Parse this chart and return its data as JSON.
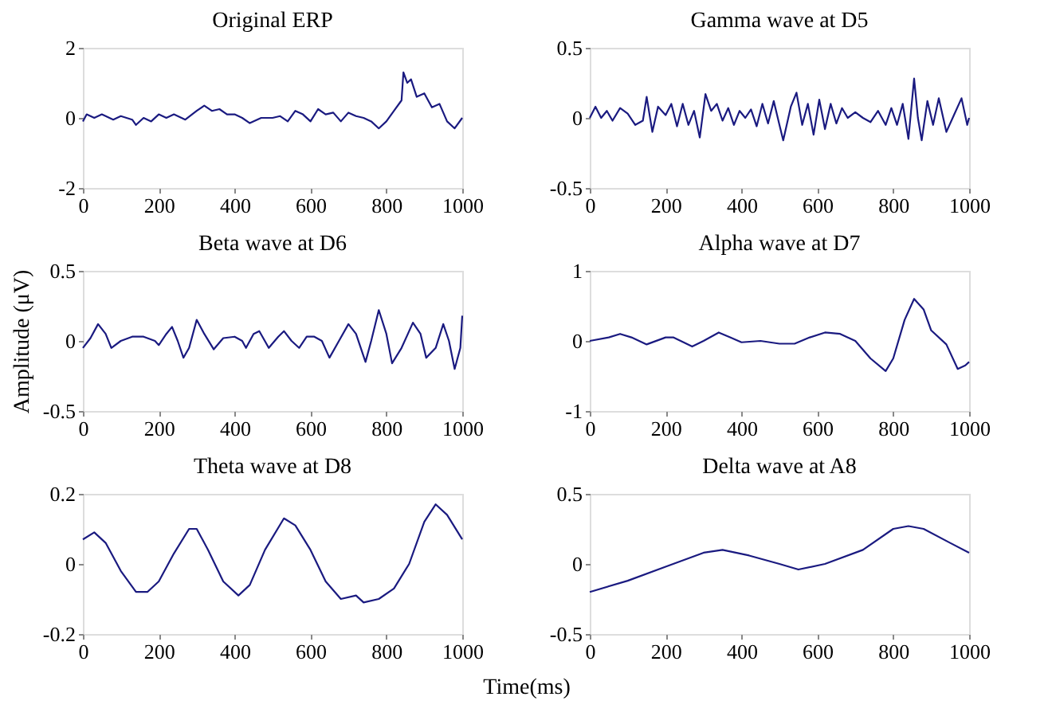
{
  "chart_data": [
    {
      "type": "line",
      "title": "Original ERP",
      "xlim": [
        0,
        1000
      ],
      "xticks": [
        0,
        200,
        400,
        600,
        800,
        1000
      ],
      "ylim": [
        -2,
        2
      ],
      "yticks": [
        -2,
        0,
        2
      ],
      "grid": false,
      "legend": false,
      "x": [
        0,
        10,
        30,
        50,
        80,
        100,
        130,
        140,
        160,
        180,
        200,
        220,
        240,
        270,
        300,
        320,
        340,
        360,
        380,
        400,
        420,
        440,
        470,
        500,
        520,
        540,
        560,
        580,
        600,
        620,
        640,
        660,
        680,
        700,
        720,
        740,
        760,
        780,
        800,
        820,
        840,
        845,
        855,
        865,
        880,
        900,
        920,
        940,
        960,
        980,
        1000
      ],
      "series": [
        {
          "color": "#1a1a80",
          "values": [
            -0.1,
            0.1,
            0.0,
            0.1,
            -0.05,
            0.05,
            -0.05,
            -0.2,
            0.0,
            -0.1,
            0.1,
            0.0,
            0.1,
            -0.05,
            0.2,
            0.35,
            0.2,
            0.25,
            0.1,
            0.1,
            0.0,
            -0.15,
            0.0,
            0.0,
            0.05,
            -0.1,
            0.2,
            0.1,
            -0.1,
            0.25,
            0.1,
            0.15,
            -0.1,
            0.15,
            0.05,
            0.0,
            -0.1,
            -0.3,
            -0.1,
            0.2,
            0.5,
            1.3,
            1.0,
            1.1,
            0.6,
            0.7,
            0.3,
            0.4,
            -0.1,
            -0.3,
            0.0
          ]
        }
      ]
    },
    {
      "type": "line",
      "title": "Gamma wave at D5",
      "xlim": [
        0,
        1000
      ],
      "xticks": [
        0,
        200,
        400,
        600,
        800,
        1000
      ],
      "ylim": [
        -0.5,
        0.5
      ],
      "yticks": [
        -0.5,
        0,
        0.5
      ],
      "grid": false,
      "legend": false,
      "x": [
        0,
        15,
        30,
        45,
        60,
        80,
        100,
        120,
        140,
        150,
        165,
        180,
        200,
        215,
        230,
        245,
        260,
        275,
        290,
        305,
        320,
        335,
        350,
        365,
        380,
        395,
        410,
        425,
        440,
        455,
        470,
        485,
        500,
        510,
        530,
        545,
        560,
        575,
        590,
        605,
        620,
        635,
        650,
        665,
        680,
        700,
        720,
        740,
        760,
        780,
        795,
        810,
        825,
        840,
        855,
        865,
        875,
        890,
        905,
        920,
        940,
        960,
        980,
        995,
        1000
      ],
      "series": [
        {
          "color": "#1a1a80",
          "values": [
            0.0,
            0.08,
            0.0,
            0.05,
            -0.02,
            0.07,
            0.03,
            -0.05,
            -0.02,
            0.15,
            -0.1,
            0.08,
            0.02,
            0.1,
            -0.06,
            0.1,
            -0.05,
            0.05,
            -0.14,
            0.17,
            0.05,
            0.1,
            -0.02,
            0.07,
            -0.05,
            0.05,
            0.0,
            0.06,
            -0.06,
            0.1,
            -0.04,
            0.12,
            -0.05,
            -0.16,
            0.08,
            0.18,
            -0.05,
            0.1,
            -0.12,
            0.13,
            -0.08,
            0.1,
            -0.04,
            0.07,
            0.0,
            0.04,
            0.0,
            -0.03,
            0.05,
            -0.05,
            0.07,
            -0.05,
            0.1,
            -0.15,
            0.28,
            0.0,
            -0.16,
            0.12,
            -0.05,
            0.14,
            -0.1,
            0.02,
            0.14,
            -0.05,
            0.0
          ]
        }
      ]
    },
    {
      "type": "line",
      "title": "Beta wave at D6",
      "ylabel": "Amplitude (μV)",
      "xlim": [
        0,
        1000
      ],
      "xticks": [
        0,
        200,
        400,
        600,
        800,
        1000
      ],
      "ylim": [
        -0.5,
        0.5
      ],
      "yticks": [
        -0.5,
        0,
        0.5
      ],
      "grid": false,
      "legend": false,
      "x": [
        0,
        20,
        40,
        60,
        75,
        100,
        130,
        160,
        190,
        200,
        220,
        235,
        250,
        265,
        280,
        300,
        320,
        345,
        370,
        400,
        420,
        430,
        450,
        465,
        490,
        515,
        530,
        550,
        570,
        590,
        610,
        630,
        650,
        675,
        700,
        720,
        745,
        760,
        780,
        800,
        815,
        840,
        870,
        890,
        905,
        930,
        950,
        965,
        980,
        995,
        1000
      ],
      "series": [
        {
          "color": "#1a1a80",
          "values": [
            -0.05,
            0.02,
            0.12,
            0.05,
            -0.05,
            0.0,
            0.03,
            0.03,
            0.0,
            -0.03,
            0.05,
            0.1,
            0.0,
            -0.12,
            -0.05,
            0.15,
            0.05,
            -0.06,
            0.02,
            0.03,
            0.0,
            -0.05,
            0.05,
            0.07,
            -0.05,
            0.03,
            0.07,
            0.0,
            -0.05,
            0.03,
            0.03,
            0.0,
            -0.12,
            0.0,
            0.12,
            0.05,
            -0.15,
            0.0,
            0.22,
            0.05,
            -0.16,
            -0.05,
            0.13,
            0.05,
            -0.12,
            -0.05,
            0.12,
            0.0,
            -0.2,
            -0.05,
            0.18
          ]
        }
      ]
    },
    {
      "type": "line",
      "title": "Alpha wave at D7",
      "xlim": [
        0,
        1000
      ],
      "xticks": [
        0,
        200,
        400,
        600,
        800,
        1000
      ],
      "ylim": [
        -1,
        1
      ],
      "yticks": [
        -1,
        0,
        1
      ],
      "grid": false,
      "legend": false,
      "x": [
        0,
        50,
        80,
        110,
        150,
        200,
        220,
        270,
        300,
        340,
        370,
        400,
        450,
        500,
        540,
        580,
        620,
        660,
        700,
        740,
        780,
        800,
        830,
        855,
        880,
        900,
        940,
        970,
        990,
        1000
      ],
      "series": [
        {
          "color": "#1a1a80",
          "values": [
            0.0,
            0.05,
            0.1,
            0.05,
            -0.05,
            0.05,
            0.05,
            -0.08,
            0.0,
            0.12,
            0.05,
            -0.02,
            0.0,
            -0.04,
            -0.04,
            0.05,
            0.12,
            0.1,
            0.0,
            -0.25,
            -0.43,
            -0.25,
            0.3,
            0.6,
            0.45,
            0.15,
            -0.05,
            -0.4,
            -0.35,
            -0.3
          ]
        }
      ]
    },
    {
      "type": "line",
      "title": "Theta wave at D8",
      "xlabel": "Time(ms)",
      "xlim": [
        0,
        1000
      ],
      "xticks": [
        0,
        200,
        400,
        600,
        800,
        1000
      ],
      "ylim": [
        -0.2,
        0.2
      ],
      "yticks": [
        -0.2,
        0,
        0.2
      ],
      "grid": false,
      "legend": false,
      "x": [
        0,
        30,
        60,
        100,
        140,
        170,
        200,
        240,
        280,
        300,
        330,
        370,
        410,
        440,
        480,
        530,
        560,
        600,
        640,
        680,
        720,
        740,
        780,
        820,
        860,
        900,
        930,
        960,
        1000
      ],
      "series": [
        {
          "color": "#1a1a80",
          "values": [
            0.07,
            0.09,
            0.06,
            -0.02,
            -0.08,
            -0.08,
            -0.05,
            0.03,
            0.1,
            0.1,
            0.04,
            -0.05,
            -0.09,
            -0.06,
            0.04,
            0.13,
            0.11,
            0.04,
            -0.05,
            -0.1,
            -0.09,
            -0.11,
            -0.1,
            -0.07,
            0.0,
            0.12,
            0.17,
            0.14,
            0.07
          ]
        }
      ]
    },
    {
      "type": "line",
      "title": "Delta wave at A8",
      "xlim": [
        0,
        1000
      ],
      "xticks": [
        0,
        200,
        400,
        600,
        800,
        1000
      ],
      "ylim": [
        -0.5,
        0.5
      ],
      "yticks": [
        -0.5,
        0,
        0.5
      ],
      "grid": false,
      "legend": false,
      "x": [
        0,
        100,
        200,
        300,
        350,
        420,
        500,
        550,
        620,
        720,
        800,
        840,
        880,
        950,
        1000
      ],
      "series": [
        {
          "color": "#1a1a80",
          "values": [
            -0.2,
            -0.12,
            -0.02,
            0.08,
            0.1,
            0.06,
            0.0,
            -0.04,
            0.0,
            0.1,
            0.25,
            0.27,
            0.25,
            0.15,
            0.08
          ]
        }
      ]
    }
  ]
}
